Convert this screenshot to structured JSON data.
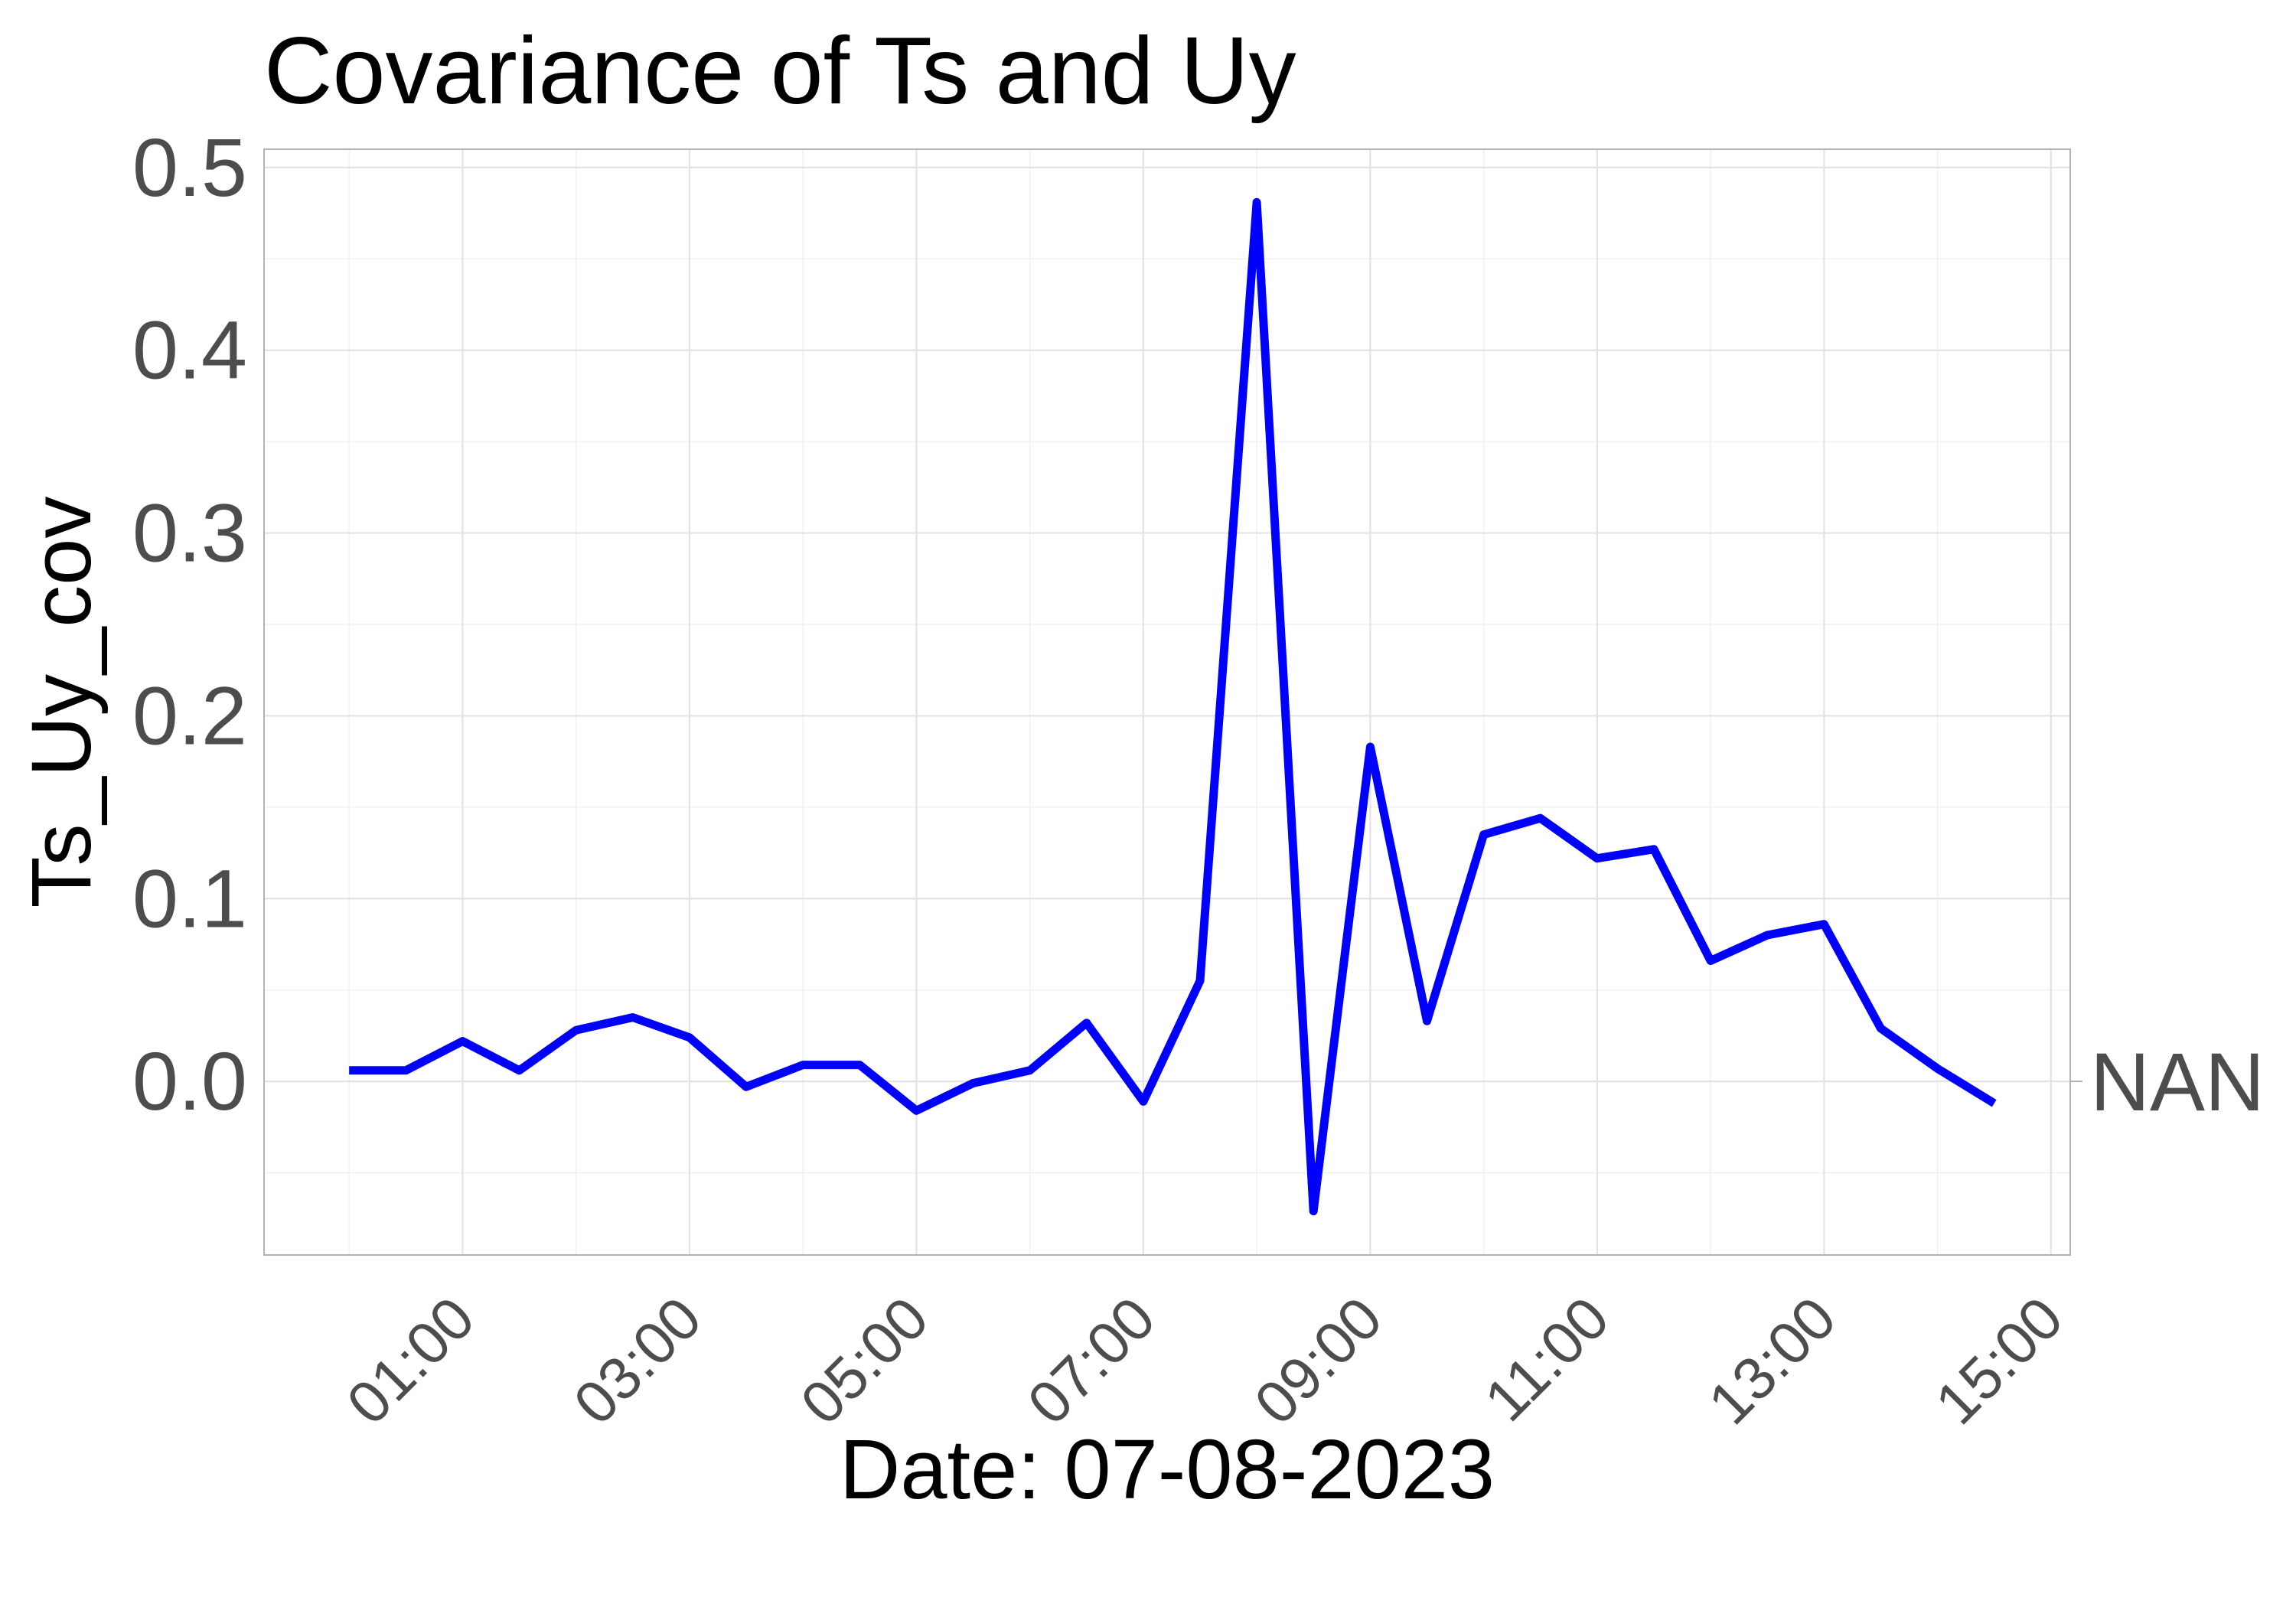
{
  "chart_data": {
    "type": "line",
    "title": "Covariance of Ts and Uy",
    "xlabel": "Date: 07-08-2023",
    "ylabel": "Ts_Uy_cov",
    "x_tick_labels": [
      "01:00",
      "03:00",
      "05:00",
      "07:00",
      "09:00",
      "11:00",
      "13:00",
      "15:00"
    ],
    "y_tick_labels": [
      "0.0",
      "0.1",
      "0.2",
      "0.3",
      "0.4",
      "0.5"
    ],
    "ylim": [
      -0.095,
      0.51
    ],
    "xlim_hours": [
      -0.75,
      15.17
    ],
    "grid": true,
    "annotation": "NAN",
    "annotation_value": 0.0,
    "line_color": "#0000ff",
    "series": [
      {
        "x": [
          "00:00",
          "00:30",
          "01:00",
          "01:30",
          "02:00",
          "02:30",
          "03:00",
          "03:30",
          "04:00",
          "04:30",
          "05:00",
          "05:30",
          "06:00",
          "06:30",
          "07:00",
          "07:30",
          "08:00",
          "08:30",
          "09:00",
          "09:30",
          "10:00",
          "10:30",
          "11:00",
          "11:30",
          "12:00",
          "12:30",
          "13:00",
          "13:30",
          "14:00",
          "14:30"
        ],
        "values": [
          0.006,
          0.006,
          0.022,
          0.006,
          0.028,
          0.035,
          0.024,
          -0.003,
          0.009,
          0.009,
          -0.016,
          -0.001,
          0.006,
          0.032,
          -0.011,
          0.055,
          0.481,
          -0.071,
          0.183,
          0.033,
          0.135,
          0.144,
          0.122,
          0.127,
          0.066,
          0.08,
          0.086,
          0.029,
          0.007,
          -0.012
        ]
      }
    ]
  }
}
